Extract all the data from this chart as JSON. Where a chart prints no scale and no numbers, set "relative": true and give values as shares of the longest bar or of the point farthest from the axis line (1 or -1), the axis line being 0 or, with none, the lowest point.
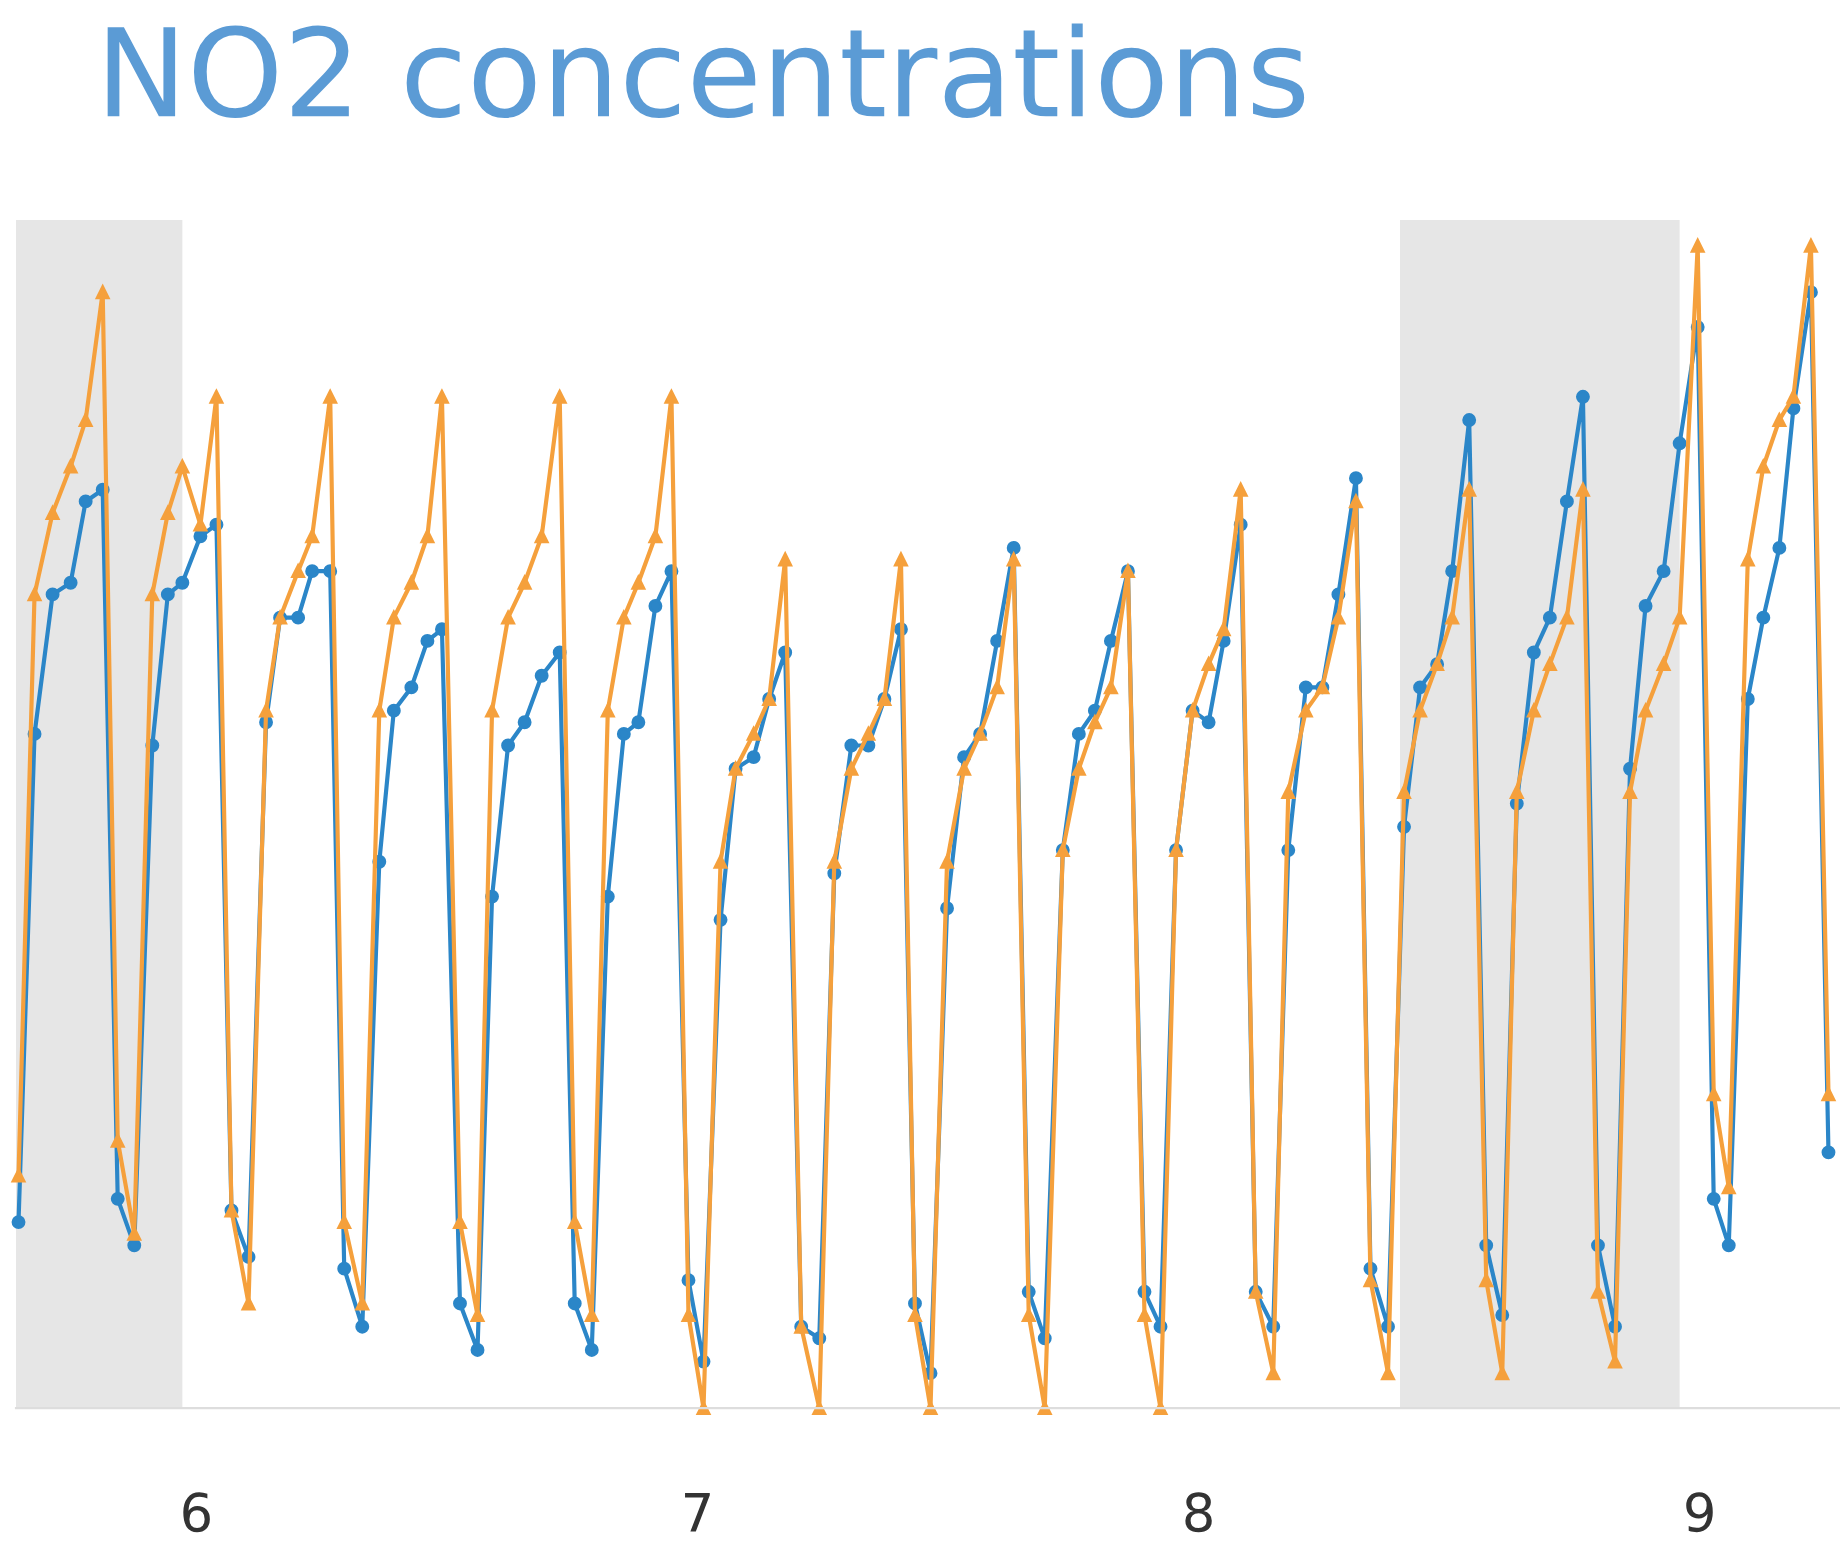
{
  "chart_data": {
    "type": "line",
    "title": "NO2 concentrations",
    "relative": true,
    "x": [
      5.645,
      5.677,
      5.713,
      5.749,
      5.779,
      5.813,
      5.843,
      5.876,
      5.912,
      5.943,
      5.972,
      6.008,
      6.04,
      6.07,
      6.104,
      6.139,
      6.167,
      6.203,
      6.231,
      6.267,
      6.295,
      6.331,
      6.365,
      6.394,
      6.429,
      6.461,
      6.49,
      6.526,
      6.561,
      6.59,
      6.622,
      6.655,
      6.689,
      6.725,
      6.755,
      6.789,
      6.821,
      6.853,
      6.882,
      6.916,
      6.948,
      6.982,
      7.012,
      7.046,
      7.076,
      7.112,
      7.143,
      7.175,
      7.207,
      7.243,
      7.273,
      7.307,
      7.341,
      7.373,
      7.406,
      7.434,
      7.465,
      7.498,
      7.532,
      7.564,
      7.598,
      7.631,
      7.661,
      7.693,
      7.729,
      7.761,
      7.793,
      7.825,
      7.859,
      7.892,
      7.924,
      7.955,
      7.988,
      8.02,
      8.05,
      8.084,
      8.114,
      8.149,
      8.179,
      8.214,
      8.247,
      8.279,
      8.314,
      8.343,
      8.378,
      8.41,
      8.442,
      8.476,
      8.506,
      8.54,
      8.574,
      8.606,
      8.635,
      8.669,
      8.701,
      8.735,
      8.767,
      8.797,
      8.831,
      8.861,
      8.892,
      8.928,
      8.96,
      8.996,
      9.028,
      9.058,
      9.096,
      9.127,
      9.159,
      9.187,
      9.222,
      9.257
    ],
    "series": [
      {
        "color": "#2b86c8",
        "marker": "circle",
        "values": [
          0.16,
          0.58,
          0.7,
          0.71,
          0.78,
          0.79,
          0.18,
          0.14,
          0.57,
          0.7,
          0.71,
          0.75,
          0.76,
          0.17,
          0.13,
          0.59,
          0.68,
          0.68,
          0.72,
          0.72,
          0.12,
          0.07,
          0.47,
          0.6,
          0.62,
          0.66,
          0.67,
          0.09,
          0.05,
          0.44,
          0.57,
          0.59,
          0.63,
          0.65,
          0.09,
          0.05,
          0.44,
          0.58,
          0.59,
          0.69,
          0.72,
          0.11,
          0.04,
          0.42,
          0.55,
          0.56,
          0.61,
          0.65,
          0.07,
          0.06,
          0.46,
          0.57,
          0.57,
          0.61,
          0.67,
          0.09,
          0.03,
          0.43,
          0.56,
          0.58,
          0.66,
          0.74,
          0.1,
          0.06,
          0.48,
          0.58,
          0.6,
          0.66,
          0.72,
          0.1,
          0.07,
          0.48,
          0.6,
          0.59,
          0.66,
          0.76,
          0.1,
          0.07,
          0.48,
          0.62,
          0.62,
          0.7,
          0.8,
          0.12,
          0.07,
          0.5,
          0.62,
          0.64,
          0.72,
          0.85,
          0.14,
          0.08,
          0.52,
          0.65,
          0.68,
          0.78,
          0.87,
          0.14,
          0.07,
          0.55,
          0.69,
          0.72,
          0.83,
          0.93,
          0.18,
          0.14,
          0.61,
          0.68,
          0.74,
          0.86,
          0.96,
          0.22
        ]
      },
      {
        "color": "#f5a03c",
        "marker": "triangle",
        "values": [
          0.2,
          0.7,
          0.77,
          0.81,
          0.85,
          0.96,
          0.23,
          0.15,
          0.7,
          0.77,
          0.81,
          0.76,
          0.87,
          0.17,
          0.09,
          0.6,
          0.68,
          0.72,
          0.75,
          0.87,
          0.16,
          0.09,
          0.6,
          0.68,
          0.71,
          0.75,
          0.87,
          0.16,
          0.08,
          0.6,
          0.68,
          0.71,
          0.75,
          0.87,
          0.16,
          0.08,
          0.6,
          0.68,
          0.71,
          0.75,
          0.87,
          0.08,
          0.0,
          0.47,
          0.55,
          0.58,
          0.61,
          0.73,
          0.07,
          0.0,
          0.47,
          0.55,
          0.58,
          0.61,
          0.73,
          0.08,
          0.0,
          0.47,
          0.55,
          0.58,
          0.62,
          0.73,
          0.08,
          0.0,
          0.48,
          0.55,
          0.59,
          0.62,
          0.72,
          0.08,
          0.0,
          0.48,
          0.6,
          0.64,
          0.67,
          0.79,
          0.1,
          0.03,
          0.53,
          0.6,
          0.62,
          0.68,
          0.78,
          0.11,
          0.03,
          0.53,
          0.6,
          0.64,
          0.68,
          0.79,
          0.11,
          0.03,
          0.53,
          0.6,
          0.64,
          0.68,
          0.79,
          0.1,
          0.04,
          0.53,
          0.6,
          0.64,
          0.68,
          1.0,
          0.27,
          0.19,
          0.73,
          0.81,
          0.85,
          0.87,
          1.0,
          0.27
        ]
      }
    ],
    "xlim": [
      5.64,
      9.28
    ],
    "xticks": [
      6,
      7,
      8,
      9
    ],
    "bands": [
      {
        "axis": "x",
        "from": 5.64,
        "to": 5.972,
        "color": "#e6e6e6"
      },
      {
        "axis": "x",
        "from": 8.402,
        "to": 8.96,
        "color": "#e6e6e6"
      }
    ],
    "grid": false,
    "legend": false
  }
}
